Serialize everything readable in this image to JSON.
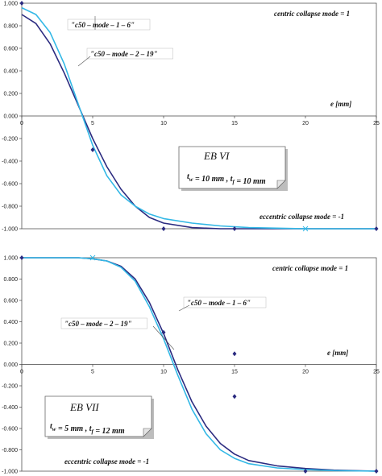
{
  "chart_data": [
    {
      "type": "line",
      "xlim": [
        0,
        25
      ],
      "ylim": [
        -1.0,
        1.0
      ],
      "x_ticks": [
        "0",
        "5",
        "10",
        "15",
        "20",
        "25"
      ],
      "y_ticks": [
        "1.000",
        "0.800",
        "0.600",
        "0.400",
        "0.200",
        "0.000",
        "-0.200",
        "-0.400",
        "-0.600",
        "-0.800",
        "-1.000"
      ],
      "xlabel": "e [mm]",
      "grid": false,
      "annotations": {
        "top": "centric collapse mode = 1",
        "bottom": "eccentric collapse mode = -1"
      },
      "box": {
        "title": "EB VI",
        "line": "t_w = 10 mm , t_f = 10 mm"
      },
      "series": [
        {
          "name": "\"c50 – mode – 1 – 6\"",
          "color": "#2b2b80",
          "x": [
            0,
            1,
            2,
            3,
            4,
            5,
            6,
            7,
            8,
            9,
            10,
            12,
            14,
            16,
            18,
            20,
            22,
            25
          ],
          "y": [
            0.9,
            0.82,
            0.64,
            0.38,
            0.09,
            -0.2,
            -0.45,
            -0.65,
            -0.8,
            -0.9,
            -0.95,
            -0.99,
            -1.0,
            -1.0,
            -1.0,
            -1.0,
            -1.0,
            -1.0
          ]
        },
        {
          "name": "\"c50 – mode – 2 – 19\"",
          "color": "#33b8e6",
          "x": [
            0,
            1,
            2,
            3,
            4,
            5,
            6,
            7,
            8,
            9,
            10,
            12,
            14,
            16,
            18,
            20,
            22,
            25
          ],
          "y": [
            0.96,
            0.9,
            0.74,
            0.46,
            0.1,
            -0.26,
            -0.53,
            -0.7,
            -0.8,
            -0.87,
            -0.91,
            -0.95,
            -0.975,
            -0.99,
            -0.995,
            -1.0,
            -1.0,
            -1.0
          ]
        }
      ],
      "markers": [
        {
          "x": 0,
          "y": 1.0,
          "symbol": "diamond"
        },
        {
          "x": 5,
          "y": -0.3,
          "symbol": "diamond"
        },
        {
          "x": 10,
          "y": -1.0,
          "symbol": "diamond"
        },
        {
          "x": 15,
          "y": -1.0,
          "symbol": "diamond"
        },
        {
          "x": 20,
          "y": -1.0,
          "symbol": "cross"
        },
        {
          "x": 25,
          "y": -1.0,
          "symbol": "diamond"
        }
      ],
      "series_labels": [
        {
          "text": "\"c50 – mode – 1 – 6\""
        },
        {
          "text": "\"c50 – mode – 2 – 19\""
        }
      ]
    },
    {
      "type": "line",
      "xlim": [
        0,
        25
      ],
      "ylim": [
        -1.0,
        1.0
      ],
      "x_ticks": [
        "0",
        "5",
        "10",
        "15",
        "20",
        "25"
      ],
      "y_ticks": [
        "1.000",
        "0.800",
        "0.600",
        "0.400",
        "0.200",
        "0.000",
        "-0.200",
        "-0.400",
        "-0.600",
        "-0.800",
        "-1.000"
      ],
      "xlabel": "e [mm]",
      "grid": false,
      "annotations": {
        "top": "centric collapse mode = 1",
        "bottom": "eccentric collapse mode = -1"
      },
      "box": {
        "title": "EB VII",
        "line": "t_w = 5 mm , t_f = 12 mm"
      },
      "series": [
        {
          "name": "\"c50 – mode – 1 – 6\"",
          "color": "#2b2b80",
          "x": [
            0,
            2,
            4,
            5,
            6,
            7,
            8,
            9,
            10,
            10.5,
            11,
            12,
            13,
            14,
            15,
            16,
            18,
            20,
            22,
            25
          ],
          "y": [
            1.0,
            1.0,
            1.0,
            0.99,
            0.97,
            0.92,
            0.8,
            0.58,
            0.29,
            0.12,
            -0.05,
            -0.35,
            -0.58,
            -0.74,
            -0.84,
            -0.9,
            -0.95,
            -0.975,
            -0.99,
            -1.0
          ]
        },
        {
          "name": "\"c50 – mode – 2 – 19\"",
          "color": "#33b8e6",
          "x": [
            0,
            2,
            4,
            5,
            6,
            7,
            8,
            9,
            10,
            10.5,
            11,
            12,
            13,
            14,
            15,
            16,
            18,
            20,
            22,
            25
          ],
          "y": [
            1.0,
            1.0,
            1.0,
            0.99,
            0.97,
            0.91,
            0.78,
            0.54,
            0.24,
            0.07,
            -0.1,
            -0.42,
            -0.65,
            -0.8,
            -0.88,
            -0.93,
            -0.97,
            -0.985,
            -0.995,
            -1.0
          ]
        }
      ],
      "markers": [
        {
          "x": 0,
          "y": 1.0,
          "symbol": "diamond"
        },
        {
          "x": 5,
          "y": 1.0,
          "symbol": "cross"
        },
        {
          "x": 10,
          "y": 0.3,
          "symbol": "diamond"
        },
        {
          "x": 15,
          "y": 0.1,
          "symbol": "diamond"
        },
        {
          "x": 15,
          "y": -0.3,
          "symbol": "diamond"
        },
        {
          "x": 20,
          "y": -1.0,
          "symbol": "diamond"
        },
        {
          "x": 25,
          "y": -1.0,
          "symbol": "diamond"
        }
      ],
      "series_labels": [
        {
          "text": "\"c50 – mode – 1 – 6\""
        },
        {
          "text": "\"c50 – mode – 2 – 19\""
        }
      ]
    }
  ]
}
